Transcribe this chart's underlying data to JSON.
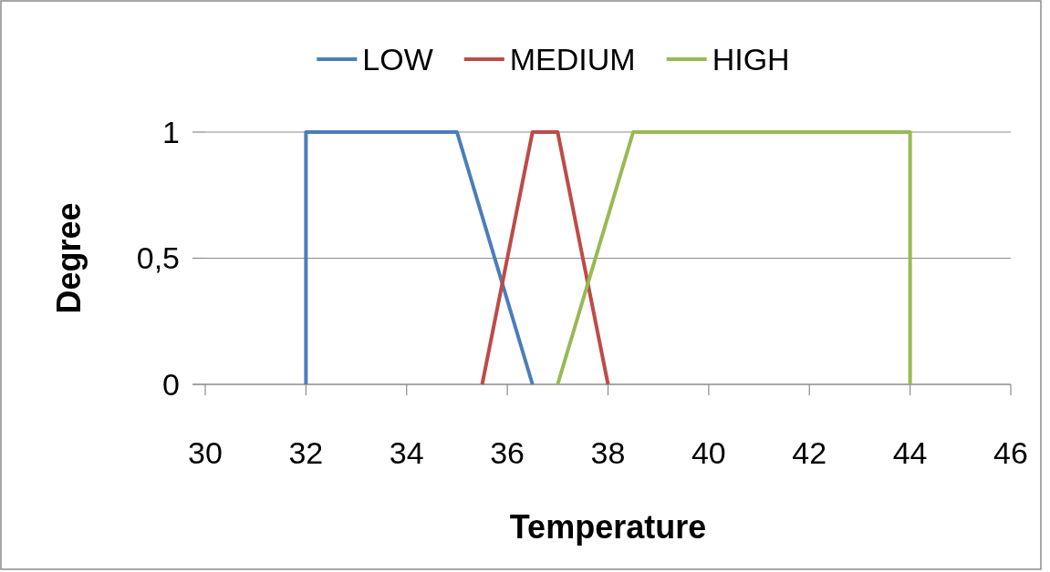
{
  "chart_data": {
    "type": "line",
    "xlabel": "Temperature",
    "ylabel": "Degree",
    "xlim": [
      30,
      46
    ],
    "xticks": [
      30,
      32,
      34,
      36,
      38,
      40,
      42,
      44,
      46
    ],
    "ylim": [
      0,
      1
    ],
    "yticks": [
      0,
      {
        "value": 0.5,
        "label": "0,5"
      },
      1
    ],
    "grid": "y",
    "legend": "top",
    "marker": "none",
    "line_style": "solid",
    "series": [
      {
        "name": "LOW",
        "color": "#4a7ebb",
        "x": [
          32,
          32,
          35,
          36.5
        ],
        "values": [
          0,
          1,
          1,
          0
        ]
      },
      {
        "name": "MEDIUM",
        "color": "#be4b48",
        "x": [
          35.5,
          36.5,
          37,
          38
        ],
        "values": [
          0,
          1,
          1,
          0
        ]
      },
      {
        "name": "HIGH",
        "color": "#98b954",
        "x": [
          37,
          38.5,
          44,
          44
        ],
        "values": [
          0,
          1,
          1,
          0
        ]
      }
    ]
  }
}
